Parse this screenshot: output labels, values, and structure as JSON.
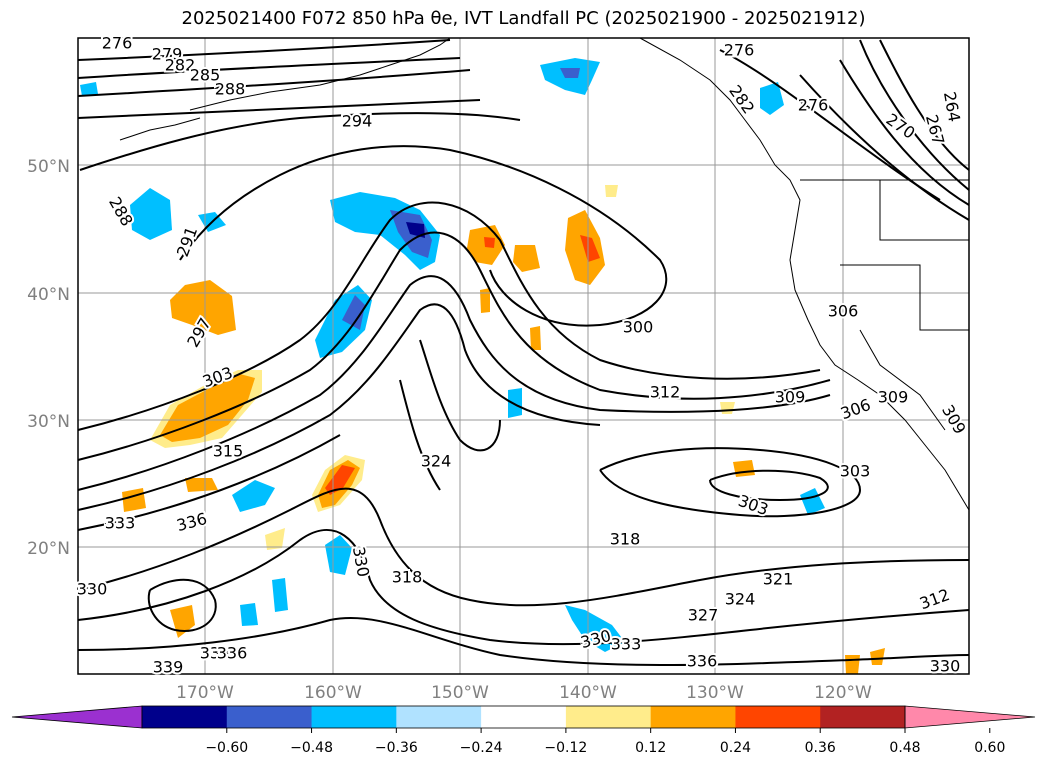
{
  "title": "2025021400 F072 850 hPa θe, IVT Landfall PC (2025021900 - 2025021912)",
  "lat_labels": [
    "50°N",
    "40°N",
    "30°N",
    "20°N"
  ],
  "lon_labels": [
    "170°W",
    "160°W",
    "150°W",
    "140°W",
    "130°W",
    "120°W"
  ],
  "contour_labels": [
    "276",
    "279",
    "282",
    "285",
    "288",
    "294",
    "288",
    "291",
    "297",
    "303",
    "315",
    "333",
    "336",
    "330",
    "333",
    "336",
    "339",
    "324",
    "330",
    "318",
    "300",
    "312",
    "309",
    "306",
    "309",
    "309",
    "303",
    "303",
    "318",
    "321",
    "324",
    "327",
    "330",
    "333",
    "336",
    "312",
    "330",
    "276",
    "276",
    "282",
    "270",
    "267",
    "264",
    "306"
  ],
  "colorbar": {
    "ticks": [
      "−0.60",
      "−0.48",
      "−0.36",
      "−0.24",
      "−0.12",
      "0.12",
      "0.24",
      "0.36",
      "0.48",
      "0.60"
    ],
    "colors": [
      "#9b30d0",
      "#00008b",
      "#3a5fcd",
      "#00bfff",
      "#b0e2ff",
      "#ffffff",
      "#ffec8b",
      "#ffa500",
      "#ff4500",
      "#b22222",
      "#ff88aa"
    ]
  }
}
